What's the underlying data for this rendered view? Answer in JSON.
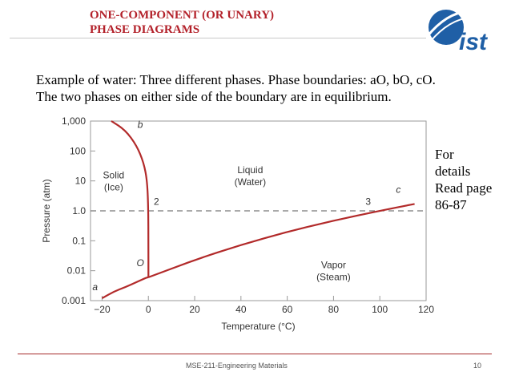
{
  "slide": {
    "title_line1": "ONE-COMPONENT (OR UNARY)",
    "title_line2": "PHASE DIAGRAMS",
    "body_line1": "Example of water: Three  different phases. Phase boundaries: aO, bO, cO.",
    "body_line2": "The two  phases on either  side of the boundary are in equilibrium.",
    "side_note": [
      "For",
      "details",
      "Read page",
      "86-87"
    ],
    "footer_text": "MSE-211-Engineering Materials",
    "page_number": "10",
    "logo_text": "ist"
  },
  "colors": {
    "title": "#b3212a",
    "curve": "#b22a2a",
    "logo_blue": "#1f5fa6",
    "footer_rule": "#a52a2a"
  },
  "chart_data": {
    "type": "line",
    "xlabel": "Temperature (°C)",
    "ylabel": "Pressure (atm)",
    "xlim": [
      -25,
      120
    ],
    "ylim": [
      0.001,
      1000
    ],
    "yscale": "log",
    "x_ticks": [
      {
        "value": -20,
        "label": "−20"
      },
      {
        "value": 0,
        "label": "0"
      },
      {
        "value": 20,
        "label": "20"
      },
      {
        "value": 40,
        "label": "40"
      },
      {
        "value": 60,
        "label": "60"
      },
      {
        "value": 80,
        "label": "80"
      },
      {
        "value": 100,
        "label": "100"
      },
      {
        "value": 120,
        "label": "120"
      }
    ],
    "y_ticks": [
      {
        "value": 1000,
        "label": "1,000"
      },
      {
        "value": 100,
        "label": "100"
      },
      {
        "value": 10,
        "label": "10"
      },
      {
        "value": 1,
        "label": "1.0"
      },
      {
        "value": 0.1,
        "label": "0.1"
      },
      {
        "value": 0.01,
        "label": "0.01"
      },
      {
        "value": 0.001,
        "label": "0.001"
      }
    ],
    "reference_line": {
      "y": 1
    },
    "series": [
      {
        "id": "aO",
        "points": [
          [
            -20,
            0.0012
          ],
          [
            -15,
            0.002
          ],
          [
            -10,
            0.0028
          ],
          [
            -5,
            0.0042
          ],
          [
            -1,
            0.0058
          ],
          [
            0.01,
            0.006
          ]
        ]
      },
      {
        "id": "bO",
        "points": [
          [
            -16,
            1000
          ],
          [
            -10,
            500
          ],
          [
            -5,
            150
          ],
          [
            -2,
            40
          ],
          [
            -0.5,
            10
          ],
          [
            0,
            1
          ],
          [
            0,
            0.1
          ],
          [
            0.01,
            0.006
          ]
        ]
      },
      {
        "id": "cO",
        "points": [
          [
            0.01,
            0.006
          ],
          [
            20,
            0.023
          ],
          [
            40,
            0.073
          ],
          [
            60,
            0.2
          ],
          [
            80,
            0.47
          ],
          [
            100,
            1.0
          ],
          [
            115,
            1.7
          ]
        ]
      }
    ],
    "point_labels": [
      {
        "text": "a",
        "x": -23,
        "y": 0.0022
      },
      {
        "text": "b",
        "x": -3.5,
        "y": 600
      },
      {
        "text": "c",
        "x": 108,
        "y": 4
      },
      {
        "text": "O",
        "x": -3.5,
        "y": 0.014
      },
      {
        "text": "2",
        "x": 3.5,
        "y": 1.6
      },
      {
        "text": "3",
        "x": 95,
        "y": 1.6
      }
    ],
    "region_labels": [
      {
        "lines": [
          "Solid",
          "(Ice)"
        ],
        "x": -15,
        "y": 12
      },
      {
        "lines": [
          "Liquid",
          "(Water)"
        ],
        "x": 44,
        "y": 18
      },
      {
        "lines": [
          "Vapor",
          "(Steam)"
        ],
        "x": 80,
        "y": 0.012
      }
    ]
  }
}
